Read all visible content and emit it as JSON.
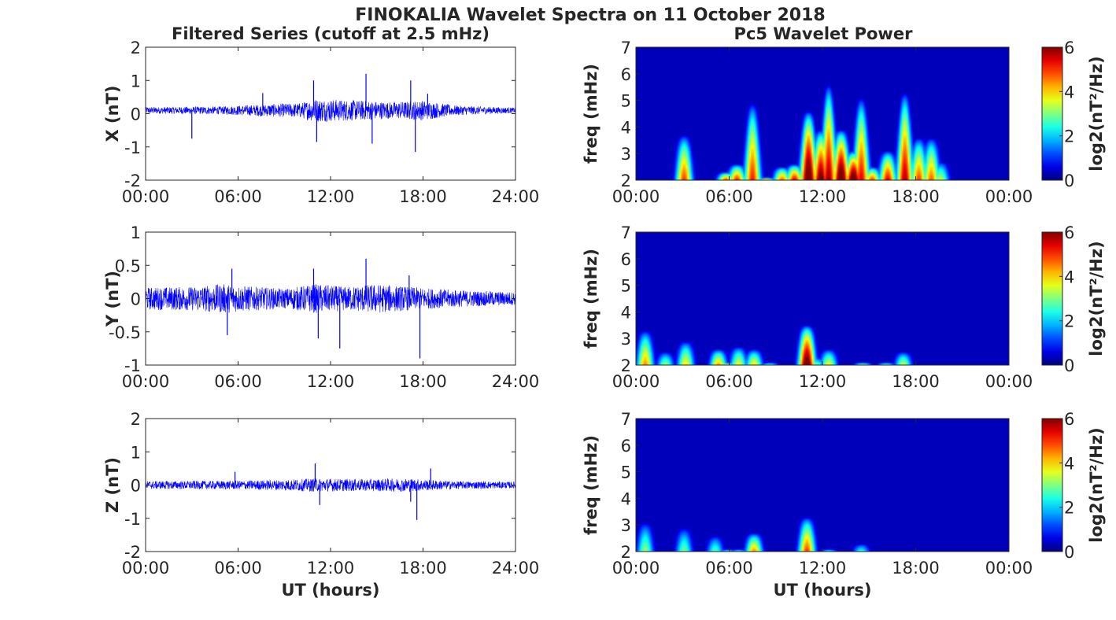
{
  "figure": {
    "title": "FINOKALIA Wavelet Spectra on 11 October 2018",
    "left_column_title": "Filtered Series (cutoff at 2.5 mHz)",
    "right_column_title": "Pc5 Wavelet Power"
  },
  "chart_data": [
    {
      "type": "line",
      "panel": "X",
      "title": "Filtered Series (cutoff at 2.5 mHz)",
      "xlabel": "",
      "ylabel": "X (nT)",
      "xlim": [
        0,
        24
      ],
      "ylim": [
        -2,
        2
      ],
      "x_ticks": [
        "00:00",
        "06:00",
        "12:00",
        "18:00",
        "24:00"
      ],
      "y_ticks": [
        "-2",
        "-1",
        "0",
        "1",
        "2"
      ],
      "color": "#0000ff",
      "baseline": 0.1,
      "noise_amplitude": [
        [
          0,
          0.1
        ],
        [
          5,
          0.12
        ],
        [
          7.5,
          0.18
        ],
        [
          10,
          0.22
        ],
        [
          11,
          0.35
        ],
        [
          14,
          0.3
        ],
        [
          16,
          0.25
        ],
        [
          18,
          0.3
        ],
        [
          20,
          0.15
        ],
        [
          24,
          0.08
        ]
      ],
      "spikes": [
        {
          "x": 3,
          "y": -0.75
        },
        {
          "x": 7.6,
          "y": 0.62
        },
        {
          "x": 10.9,
          "y": 1.0
        },
        {
          "x": 11.1,
          "y": -0.85
        },
        {
          "x": 14.3,
          "y": 1.2
        },
        {
          "x": 14.7,
          "y": -0.9
        },
        {
          "x": 17.2,
          "y": 1.0
        },
        {
          "x": 17.5,
          "y": -1.15
        },
        {
          "x": 18.3,
          "y": 0.6
        }
      ]
    },
    {
      "type": "heatmap",
      "panel": "X",
      "title": "Pc5 Wavelet Power",
      "xlabel": "",
      "ylabel": "freq (mHz)",
      "xlim": [
        0,
        24
      ],
      "ylim": [
        2,
        7
      ],
      "x_ticks": [
        "00:00",
        "06:00",
        "12:00",
        "18:00",
        "00:00"
      ],
      "y_ticks": [
        "2",
        "3",
        "4",
        "5",
        "6",
        "7"
      ],
      "colorbar": {
        "label": "log2(nT²/Hz)",
        "range": [
          0,
          6
        ],
        "ticks": [
          "0",
          "2",
          "4",
          "6"
        ],
        "colormap": "jet"
      },
      "bursts": [
        [
          0.4,
          1.6,
          3.8
        ],
        [
          1.8,
          1.5,
          4.5
        ],
        [
          2.4,
          1.6,
          6.8
        ],
        [
          3.1,
          3.6,
          5.0
        ],
        [
          4.3,
          1.2,
          4.2
        ],
        [
          5.0,
          1.5,
          4.8
        ],
        [
          5.8,
          2.2,
          5.0
        ],
        [
          6.5,
          2.5,
          5.2
        ],
        [
          7.5,
          4.8,
          5.2
        ],
        [
          8.4,
          2.0,
          4.5
        ],
        [
          9.4,
          2.4,
          4.8
        ],
        [
          10.2,
          2.5,
          5.5
        ],
        [
          11.1,
          4.5,
          7.0
        ],
        [
          11.9,
          3.8,
          6.5
        ],
        [
          12.4,
          5.5,
          6.0
        ],
        [
          13.2,
          3.8,
          7.0
        ],
        [
          14.0,
          3.0,
          7.0
        ],
        [
          14.5,
          5.0,
          5.5
        ],
        [
          15.2,
          2.4,
          5.0
        ],
        [
          16.2,
          3.0,
          5.5
        ],
        [
          17.3,
          5.2,
          5.8
        ],
        [
          18.2,
          3.5,
          5.0
        ],
        [
          19.0,
          3.5,
          4.8
        ],
        [
          19.6,
          2.6,
          3.5
        ],
        [
          22.5,
          1.0,
          3.0
        ]
      ]
    },
    {
      "type": "line",
      "panel": "Y",
      "xlabel": "",
      "ylabel": "Y (nT)",
      "xlim": [
        0,
        24
      ],
      "ylim": [
        -1,
        1
      ],
      "x_ticks": [
        "00:00",
        "06:00",
        "12:00",
        "18:00",
        "24:00"
      ],
      "y_ticks": [
        "-1",
        "-0.5",
        "0",
        "0.5",
        "1"
      ],
      "color": "#0000ff",
      "baseline": 0.0,
      "noise_amplitude": [
        [
          0,
          0.17
        ],
        [
          3,
          0.18
        ],
        [
          5,
          0.22
        ],
        [
          7,
          0.18
        ],
        [
          9,
          0.15
        ],
        [
          11,
          0.22
        ],
        [
          13,
          0.18
        ],
        [
          15,
          0.22
        ],
        [
          18,
          0.16
        ],
        [
          21,
          0.12
        ],
        [
          24,
          0.1
        ]
      ],
      "spikes": [
        {
          "x": 5.3,
          "y": -0.55
        },
        {
          "x": 5.6,
          "y": 0.45
        },
        {
          "x": 10.9,
          "y": 0.45
        },
        {
          "x": 11.2,
          "y": -0.6
        },
        {
          "x": 12.6,
          "y": -0.75
        },
        {
          "x": 14.3,
          "y": 0.6
        },
        {
          "x": 17.1,
          "y": 0.35
        },
        {
          "x": 17.8,
          "y": -0.9
        }
      ]
    },
    {
      "type": "heatmap",
      "panel": "Y",
      "xlabel": "",
      "ylabel": "freq (mHz)",
      "xlim": [
        0,
        24
      ],
      "ylim": [
        2,
        7
      ],
      "x_ticks": [
        "00:00",
        "06:00",
        "12:00",
        "18:00",
        "00:00"
      ],
      "y_ticks": [
        "2",
        "3",
        "4",
        "5",
        "6",
        "7"
      ],
      "colorbar": {
        "label": "log2(nT²/Hz)",
        "range": [
          0,
          6
        ],
        "ticks": [
          "0",
          "2",
          "4",
          "6"
        ],
        "colormap": "jet"
      },
      "bursts": [
        [
          0.6,
          3.2,
          4.5
        ],
        [
          1.9,
          2.4,
          3.2
        ],
        [
          3.2,
          2.8,
          4.0
        ],
        [
          5.3,
          2.5,
          4.4
        ],
        [
          5.8,
          2.0,
          4.0
        ],
        [
          6.6,
          2.6,
          3.8
        ],
        [
          7.6,
          2.5,
          4.0
        ],
        [
          8.6,
          2.0,
          3.0
        ],
        [
          11.0,
          3.4,
          6.8
        ],
        [
          11.6,
          2.2,
          3.0
        ],
        [
          12.4,
          2.5,
          3.8
        ],
        [
          13.8,
          1.5,
          3.0
        ],
        [
          14.6,
          2.0,
          3.5
        ],
        [
          15.3,
          1.5,
          2.8
        ],
        [
          16.1,
          2.0,
          3.2
        ],
        [
          17.2,
          2.4,
          3.5
        ],
        [
          18.4,
          1.5,
          2.5
        ],
        [
          21.2,
          1.0,
          2.5
        ]
      ]
    },
    {
      "type": "line",
      "panel": "Z",
      "xlabel": "UT (hours)",
      "ylabel": "Z (nT)",
      "xlim": [
        0,
        24
      ],
      "ylim": [
        -2,
        2
      ],
      "x_ticks": [
        "00:00",
        "06:00",
        "12:00",
        "18:00",
        "24:00"
      ],
      "y_ticks": [
        "-2",
        "-1",
        "0",
        "1",
        "2"
      ],
      "color": "#0000ff",
      "baseline": 0.0,
      "noise_amplitude": [
        [
          0,
          0.12
        ],
        [
          5,
          0.13
        ],
        [
          8,
          0.15
        ],
        [
          11,
          0.2
        ],
        [
          14,
          0.18
        ],
        [
          17,
          0.2
        ],
        [
          20,
          0.12
        ],
        [
          24,
          0.1
        ]
      ],
      "spikes": [
        {
          "x": 5.8,
          "y": 0.4
        },
        {
          "x": 11.0,
          "y": 0.65
        },
        {
          "x": 11.3,
          "y": -0.6
        },
        {
          "x": 17.2,
          "y": -0.5
        },
        {
          "x": 17.6,
          "y": -1.05
        },
        {
          "x": 18.5,
          "y": 0.5
        }
      ]
    },
    {
      "type": "heatmap",
      "panel": "Z",
      "xlabel": "UT (hours)",
      "ylabel": "freq (mHz)",
      "xlim": [
        0,
        24
      ],
      "ylim": [
        2,
        7
      ],
      "x_ticks": [
        "00:00",
        "06:00",
        "12:00",
        "18:00",
        "00:00"
      ],
      "y_ticks": [
        "2",
        "3",
        "4",
        "5",
        "6",
        "7"
      ],
      "colorbar": {
        "label": "log2(nT²/Hz)",
        "range": [
          0,
          6
        ],
        "ticks": [
          "0",
          "2",
          "4",
          "6"
        ],
        "colormap": "jet"
      },
      "bursts": [
        [
          0.6,
          3.0,
          3.2
        ],
        [
          1.8,
          1.5,
          2.5
        ],
        [
          3.1,
          2.8,
          3.0
        ],
        [
          5.1,
          2.5,
          2.8
        ],
        [
          5.9,
          2.0,
          2.5
        ],
        [
          6.6,
          2.0,
          2.5
        ],
        [
          7.6,
          2.6,
          4.5
        ],
        [
          8.5,
          1.5,
          2.0
        ],
        [
          11.0,
          3.2,
          5.0
        ],
        [
          12.4,
          2.0,
          2.5
        ],
        [
          14.5,
          2.2,
          2.5
        ],
        [
          16.2,
          1.5,
          2.2
        ],
        [
          17.3,
          1.8,
          2.5
        ],
        [
          18.6,
          1.2,
          2.0
        ]
      ]
    }
  ]
}
